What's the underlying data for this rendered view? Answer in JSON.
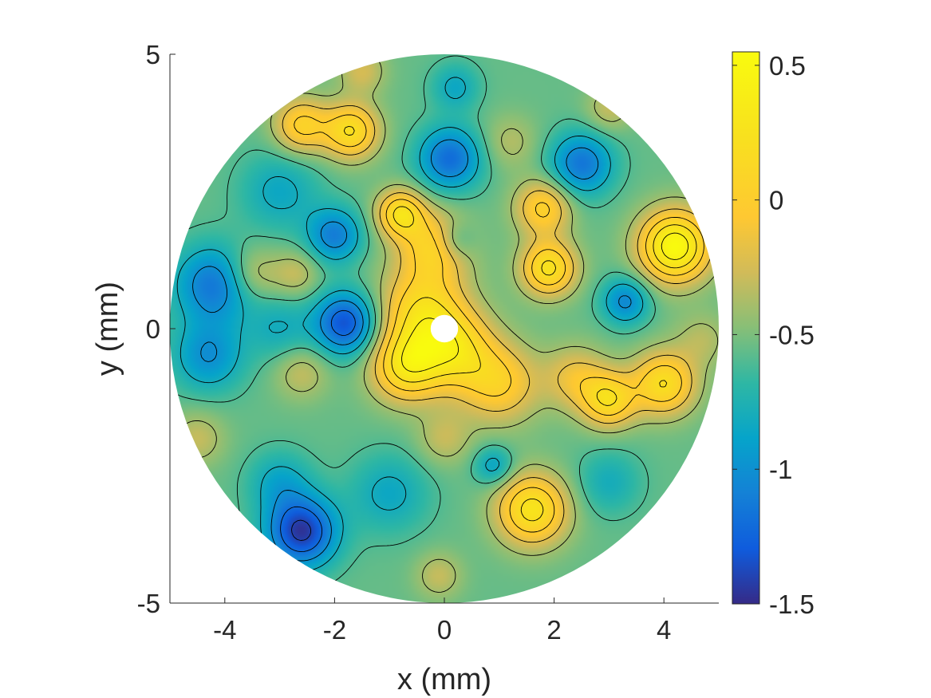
{
  "chart_data": {
    "type": "heatmap",
    "title": "",
    "xlabel": "x (mm)",
    "ylabel": "y (mm)",
    "xlim": [
      -5,
      5
    ],
    "ylim": [
      -5,
      5
    ],
    "x_ticks": [
      {
        "value": -4,
        "label": "-4"
      },
      {
        "value": -2,
        "label": "-2"
      },
      {
        "value": 0,
        "label": "0"
      },
      {
        "value": 2,
        "label": "2"
      },
      {
        "value": 4,
        "label": "4"
      }
    ],
    "y_ticks": [
      {
        "value": -5,
        "label": "-5"
      },
      {
        "value": 0,
        "label": "0"
      },
      {
        "value": 5,
        "label": "5"
      }
    ],
    "aperture": {
      "outer_radius_mm": 5,
      "inner_hole_radius_mm": 0.25
    },
    "colorbar": {
      "colormap": "parula",
      "limits": [
        -1.5,
        0.55
      ],
      "ticks": [
        {
          "value": 0.5,
          "label": "0.5"
        },
        {
          "value": 0,
          "label": "0"
        },
        {
          "value": -0.5,
          "label": "-0.5"
        },
        {
          "value": -1,
          "label": "-1"
        },
        {
          "value": -1.5,
          "label": "-1.5"
        }
      ]
    },
    "base_level": -0.55,
    "grid": false,
    "features": [
      {
        "x": 4.2,
        "y": 1.5,
        "value": 0.55,
        "s": 0.45
      },
      {
        "x": 1.6,
        "y": -3.3,
        "value": 0.28,
        "s": 0.45
      },
      {
        "x": -0.4,
        "y": 0.3,
        "value": 0.15,
        "s": 0.55
      },
      {
        "x": -0.7,
        "y": -0.7,
        "value": 0.2,
        "s": 0.45
      },
      {
        "x": 0.2,
        "y": -0.4,
        "value": 0.1,
        "s": 0.5
      },
      {
        "x": -0.2,
        "y": 1.5,
        "value": 0.05,
        "s": 0.45
      },
      {
        "x": -0.8,
        "y": 2.1,
        "value": 0.2,
        "s": 0.3
      },
      {
        "x": 1.9,
        "y": 1.1,
        "value": 0.25,
        "s": 0.35
      },
      {
        "x": 3.0,
        "y": -1.3,
        "value": 0.15,
        "s": 0.35
      },
      {
        "x": 4.0,
        "y": -1.0,
        "value": 0.2,
        "s": 0.4
      },
      {
        "x": -1.7,
        "y": 3.6,
        "value": 0.2,
        "s": 0.35
      },
      {
        "x": -2.6,
        "y": 3.7,
        "value": 0.05,
        "s": 0.35
      },
      {
        "x": 1.0,
        "y": -1.0,
        "value": 0.0,
        "s": 0.5
      },
      {
        "x": 1.8,
        "y": 2.2,
        "value": 0.05,
        "s": 0.35
      },
      {
        "x": 2.4,
        "y": -0.9,
        "value": -0.15,
        "s": 0.4
      },
      {
        "x": -2.6,
        "y": -3.7,
        "value": -1.45,
        "s": 0.45
      },
      {
        "x": -1.8,
        "y": 0.1,
        "value": -1.35,
        "s": 0.4
      },
      {
        "x": -2.0,
        "y": 1.7,
        "value": -1.1,
        "s": 0.35
      },
      {
        "x": -4.2,
        "y": 0.8,
        "value": -1.15,
        "s": 0.5
      },
      {
        "x": -4.3,
        "y": -0.5,
        "value": -1.0,
        "s": 0.45
      },
      {
        "x": 0.1,
        "y": 3.1,
        "value": -1.2,
        "s": 0.4
      },
      {
        "x": 2.5,
        "y": 3.0,
        "value": -1.15,
        "s": 0.4
      },
      {
        "x": 3.3,
        "y": 0.5,
        "value": -1.05,
        "s": 0.3
      },
      {
        "x": -3.0,
        "y": 2.5,
        "value": -0.85,
        "s": 0.5
      },
      {
        "x": -3.0,
        "y": 0.0,
        "value": -0.8,
        "s": 0.4
      },
      {
        "x": -1.0,
        "y": -3.0,
        "value": -0.85,
        "s": 0.5
      },
      {
        "x": 0.2,
        "y": 4.4,
        "value": -0.85,
        "s": 0.3
      },
      {
        "x": 0.2,
        "y": 1.6,
        "value": -0.85,
        "s": 0.25
      },
      {
        "x": 3.0,
        "y": -2.8,
        "value": -0.8,
        "s": 0.4
      },
      {
        "x": 0.9,
        "y": -2.5,
        "value": -0.9,
        "s": 0.25
      },
      {
        "x": -3.0,
        "y": -2.8,
        "value": -0.85,
        "s": 0.4
      },
      {
        "x": 1.2,
        "y": 3.4,
        "value": -0.35,
        "s": 0.35
      },
      {
        "x": -3.5,
        "y": 1.0,
        "value": -0.25,
        "s": 0.35
      },
      {
        "x": -2.7,
        "y": 1.0,
        "value": -0.3,
        "s": 0.3
      },
      {
        "x": -2.6,
        "y": -0.8,
        "value": -0.3,
        "s": 0.35
      },
      {
        "x": -4.5,
        "y": -2.0,
        "value": -0.3,
        "s": 0.35
      },
      {
        "x": 3.0,
        "y": 4.0,
        "value": -0.3,
        "s": 0.3
      },
      {
        "x": 0.0,
        "y": -2.0,
        "value": -0.3,
        "s": 0.35
      },
      {
        "x": -0.1,
        "y": -4.5,
        "value": -0.3,
        "s": 0.3
      },
      {
        "x": -1.5,
        "y": 4.7,
        "value": -0.25,
        "s": 0.3
      },
      {
        "x": 4.7,
        "y": -0.2,
        "value": -0.35,
        "s": 0.35
      }
    ]
  }
}
